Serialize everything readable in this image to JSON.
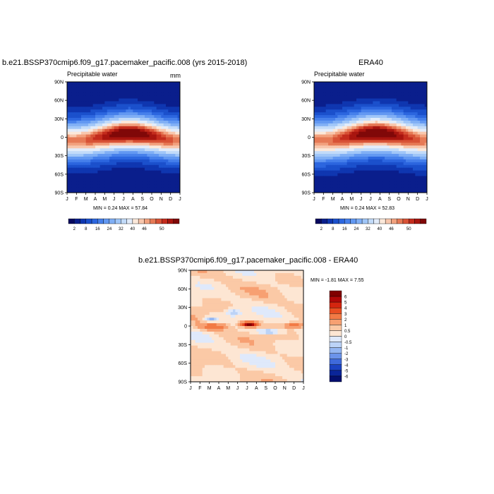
{
  "chart_data": [
    {
      "type": "heatmap",
      "title": "b.e21.BSSP370cmip6.f09_g17.pacemaker_pacific.008 (yrs 2015-2018)",
      "left_label": "Precipitable water",
      "unit_label": "mm",
      "x_ticks": [
        "J",
        "F",
        "M",
        "A",
        "M",
        "J",
        "J",
        "A",
        "S",
        "O",
        "N",
        "D",
        "J"
      ],
      "y_ticks": [
        "90N",
        "60N",
        "30N",
        "0",
        "30S",
        "60S",
        "90S"
      ],
      "stats": "MIN =   0.24 MAX =  57.84",
      "min": 0.24,
      "max": 57.84,
      "colorbar_labels": [
        "2",
        "8",
        "16",
        "24",
        "32",
        "40",
        "46",
        "50"
      ]
    },
    {
      "type": "heatmap",
      "title": "ERA40",
      "left_label": "Precipitable water",
      "x_ticks": [
        "J",
        "F",
        "M",
        "A",
        "M",
        "J",
        "J",
        "A",
        "S",
        "O",
        "N",
        "D",
        "J"
      ],
      "y_ticks": [
        "90N",
        "60N",
        "30N",
        "0",
        "30S",
        "60S",
        "90S"
      ],
      "stats": "MIN =   0.24 MAX =  52.83",
      "min": 0.24,
      "max": 52.83,
      "colorbar_labels": [
        "2",
        "8",
        "16",
        "24",
        "32",
        "40",
        "46",
        "50"
      ]
    },
    {
      "type": "heatmap",
      "title": "b.e21.BSSP370cmip6.f09_g17.pacemaker_pacific.008 - ERA40",
      "x_ticks": [
        "J",
        "F",
        "M",
        "A",
        "M",
        "J",
        "J",
        "A",
        "S",
        "O",
        "N",
        "D",
        "J"
      ],
      "y_ticks": [
        "90N",
        "60N",
        "30N",
        "0",
        "30S",
        "60S",
        "90S"
      ],
      "stats": "MIN =  -1.81 MAX =   7.55",
      "min": -1.81,
      "max": 7.55,
      "colorbar_labels": [
        "6",
        "5",
        "4",
        "3",
        "2",
        "1",
        "0.5",
        "0",
        "-0.5",
        "-1",
        "-2",
        "-3",
        "-4",
        "-5",
        "-6"
      ]
    }
  ],
  "colors": {
    "abs_palette": [
      "#08085e",
      "#0a1e8c",
      "#0f36b0",
      "#1b50cc",
      "#2c66df",
      "#4680eb",
      "#6298f2",
      "#80aff5",
      "#a0c6f8",
      "#c2dbf9",
      "#e2ecfa",
      "#fbe8da",
      "#f8c7ad",
      "#f2a27f",
      "#e67a56",
      "#d85236",
      "#c42c1d",
      "#a8150f",
      "#800808"
    ],
    "diff_palette": [
      "#800000",
      "#b00808",
      "#d4250f",
      "#e84e22",
      "#f27a45",
      "#f7a072",
      "#fbc9a6",
      "#fde6d3",
      "#dfe9fb",
      "#bcd3f7",
      "#94b6f2",
      "#6b93ea",
      "#3f6adb",
      "#1c43c2",
      "#0a2599",
      "#040f6e"
    ]
  }
}
